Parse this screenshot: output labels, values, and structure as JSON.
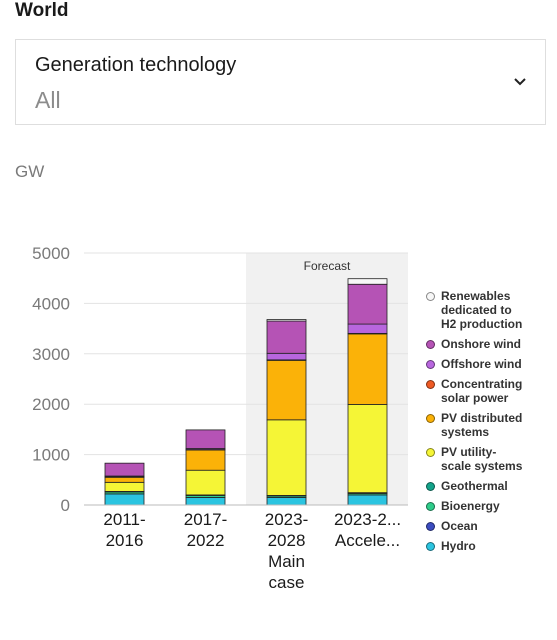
{
  "header": {
    "region": "World"
  },
  "filter": {
    "label": "Generation technology",
    "value": "All"
  },
  "unit_label": "GW",
  "chart_data": {
    "type": "bar",
    "stacked": true,
    "categories": [
      [
        "2011-",
        "2016"
      ],
      [
        "2017-",
        "2022"
      ],
      [
        "2023-",
        "2028",
        "Main",
        "case"
      ],
      [
        "2023-2...",
        "Accele..."
      ]
    ],
    "ylabel": "GW",
    "ylim": [
      0,
      5000
    ],
    "yticks": [
      0,
      1000,
      2000,
      3000,
      4000,
      5000
    ],
    "grid": true,
    "forecast_label": "Forecast",
    "forecast_categories": [
      2,
      3
    ],
    "series": [
      {
        "name": "Hydro",
        "color": "#2bc4e0",
        "values": [
          220,
          150,
          150,
          200
        ]
      },
      {
        "name": "Ocean",
        "color": "#3b4cc0",
        "values": [
          0,
          0,
          0,
          0
        ]
      },
      {
        "name": "Bioenergy",
        "color": "#2ecc8a",
        "values": [
          40,
          40,
          30,
          30
        ]
      },
      {
        "name": "Geothermal",
        "color": "#13a38a",
        "values": [
          10,
          10,
          10,
          15
        ]
      },
      {
        "name": "PV utility-scale systems",
        "color": "#f5f536",
        "values": [
          180,
          490,
          1500,
          1750
        ]
      },
      {
        "name": "PV distributed systems",
        "color": "#fbb208",
        "values": [
          100,
          400,
          1180,
          1400
        ]
      },
      {
        "name": "Concentrating solar power",
        "color": "#ee5a24",
        "values": [
          10,
          10,
          10,
          10
        ]
      },
      {
        "name": "Offshore wind",
        "color": "#b866de",
        "values": [
          15,
          20,
          130,
          185
        ]
      },
      {
        "name": "Onshore wind",
        "color": "#b553b5",
        "values": [
          255,
          370,
          640,
          790
        ]
      },
      {
        "name": "Renewables dedicated to H2 production",
        "color": "#f7f7f7",
        "values": [
          0,
          0,
          30,
          110
        ]
      }
    ],
    "legend": {
      "position": "right",
      "entries": [
        {
          "lines": [
            "Renewables",
            "dedicated to",
            "H2 production"
          ],
          "color": "#f7f7f7"
        },
        {
          "lines": [
            "Onshore wind"
          ],
          "color": "#b553b5"
        },
        {
          "lines": [
            "Offshore wind"
          ],
          "color": "#b866de"
        },
        {
          "lines": [
            "Concentrating",
            "solar power"
          ],
          "color": "#ee5a24"
        },
        {
          "lines": [
            "PV distributed",
            "systems"
          ],
          "color": "#fbb208"
        },
        {
          "lines": [
            "PV utility-",
            "scale systems"
          ],
          "color": "#f5f536"
        },
        {
          "lines": [
            "Geothermal"
          ],
          "color": "#13a38a"
        },
        {
          "lines": [
            "Bioenergy"
          ],
          "color": "#2ecc8a"
        },
        {
          "lines": [
            "Ocean"
          ],
          "color": "#3b4cc0"
        },
        {
          "lines": [
            "Hydro"
          ],
          "color": "#2bc4e0"
        }
      ]
    }
  }
}
